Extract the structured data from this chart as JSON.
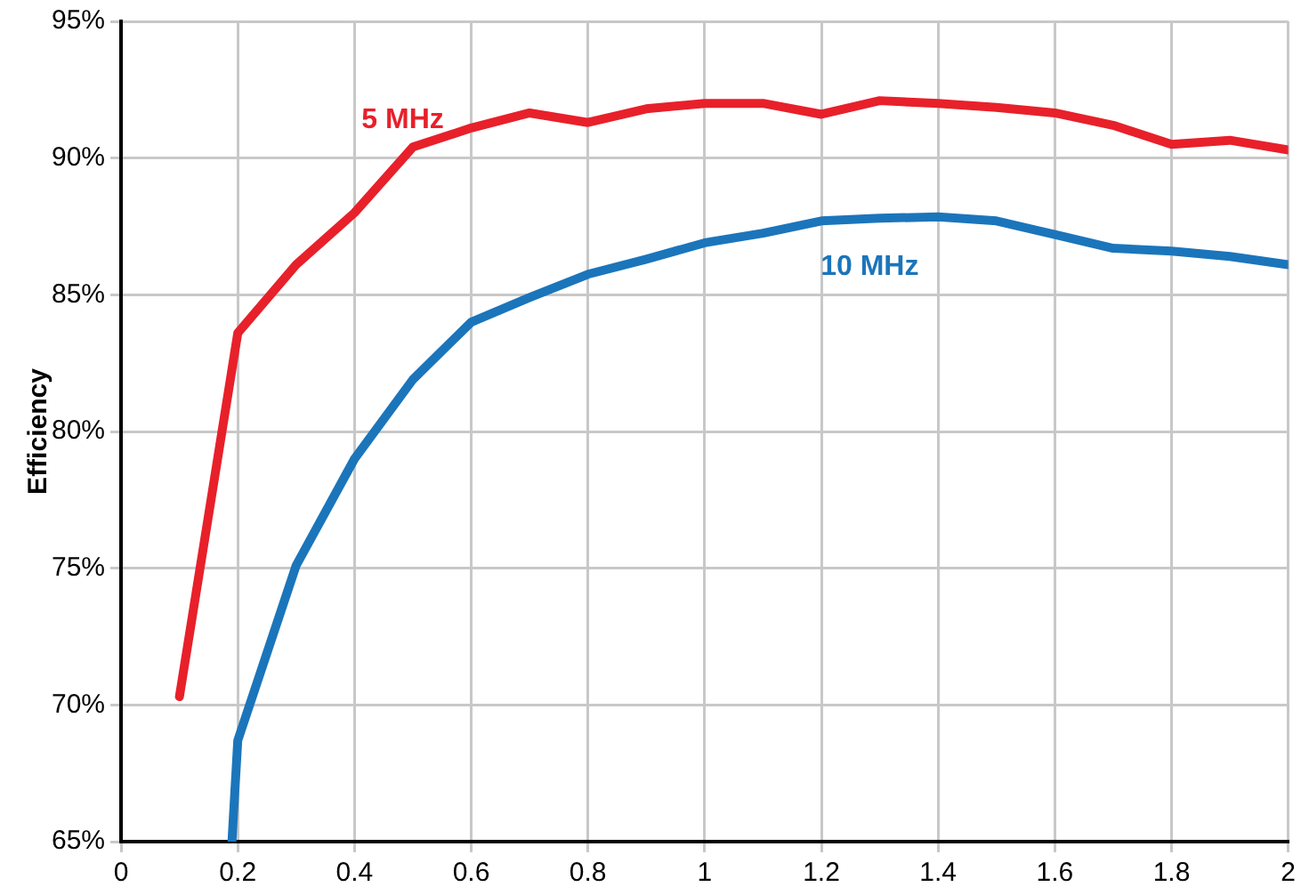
{
  "chart_data": {
    "type": "line",
    "ylabel": "Efficiency",
    "xlim": [
      0,
      2
    ],
    "xticks": [
      0,
      0.2,
      0.4,
      0.6,
      0.8,
      1,
      1.2,
      1.4,
      1.6,
      1.8,
      2
    ],
    "ylim": [
      65,
      95
    ],
    "yticks": [
      {
        "value": 65,
        "label": "65%"
      },
      {
        "value": 70,
        "label": "70%"
      },
      {
        "value": 75,
        "label": "75%"
      },
      {
        "value": 80,
        "label": "80%"
      },
      {
        "value": 85,
        "label": "85%"
      },
      {
        "value": 90,
        "label": "90%"
      },
      {
        "value": 95,
        "label": "95%"
      }
    ],
    "grid": true,
    "legend": false,
    "marker": "none",
    "line_style": "solid",
    "series": [
      {
        "name": "5 MHz",
        "color": "#e8202a",
        "x": [
          0.1,
          0.2,
          0.3,
          0.4,
          0.5,
          0.6,
          0.7,
          0.8,
          0.9,
          1.0,
          1.1,
          1.2,
          1.3,
          1.4,
          1.5,
          1.6,
          1.7,
          1.8,
          1.9,
          2.0
        ],
        "values": [
          70.3,
          83.6,
          86.1,
          88.0,
          90.4,
          91.1,
          91.65,
          91.3,
          91.8,
          92.0,
          92.0,
          91.6,
          92.1,
          92.0,
          91.85,
          91.65,
          91.2,
          90.5,
          90.65,
          90.3
        ]
      },
      {
        "name": "10 MHz",
        "color": "#1b75bb",
        "x": [
          0.19,
          0.2,
          0.3,
          0.4,
          0.5,
          0.6,
          0.7,
          0.8,
          0.9,
          1.0,
          1.1,
          1.2,
          1.3,
          1.4,
          1.5,
          1.6,
          1.7,
          1.8,
          1.9,
          2.0
        ],
        "values": [
          65.0,
          68.7,
          75.1,
          79.0,
          81.9,
          84.0,
          84.9,
          85.75,
          86.3,
          86.9,
          87.25,
          87.7,
          87.8,
          87.85,
          87.7,
          87.2,
          86.7,
          86.6,
          86.4,
          86.1
        ]
      }
    ]
  }
}
